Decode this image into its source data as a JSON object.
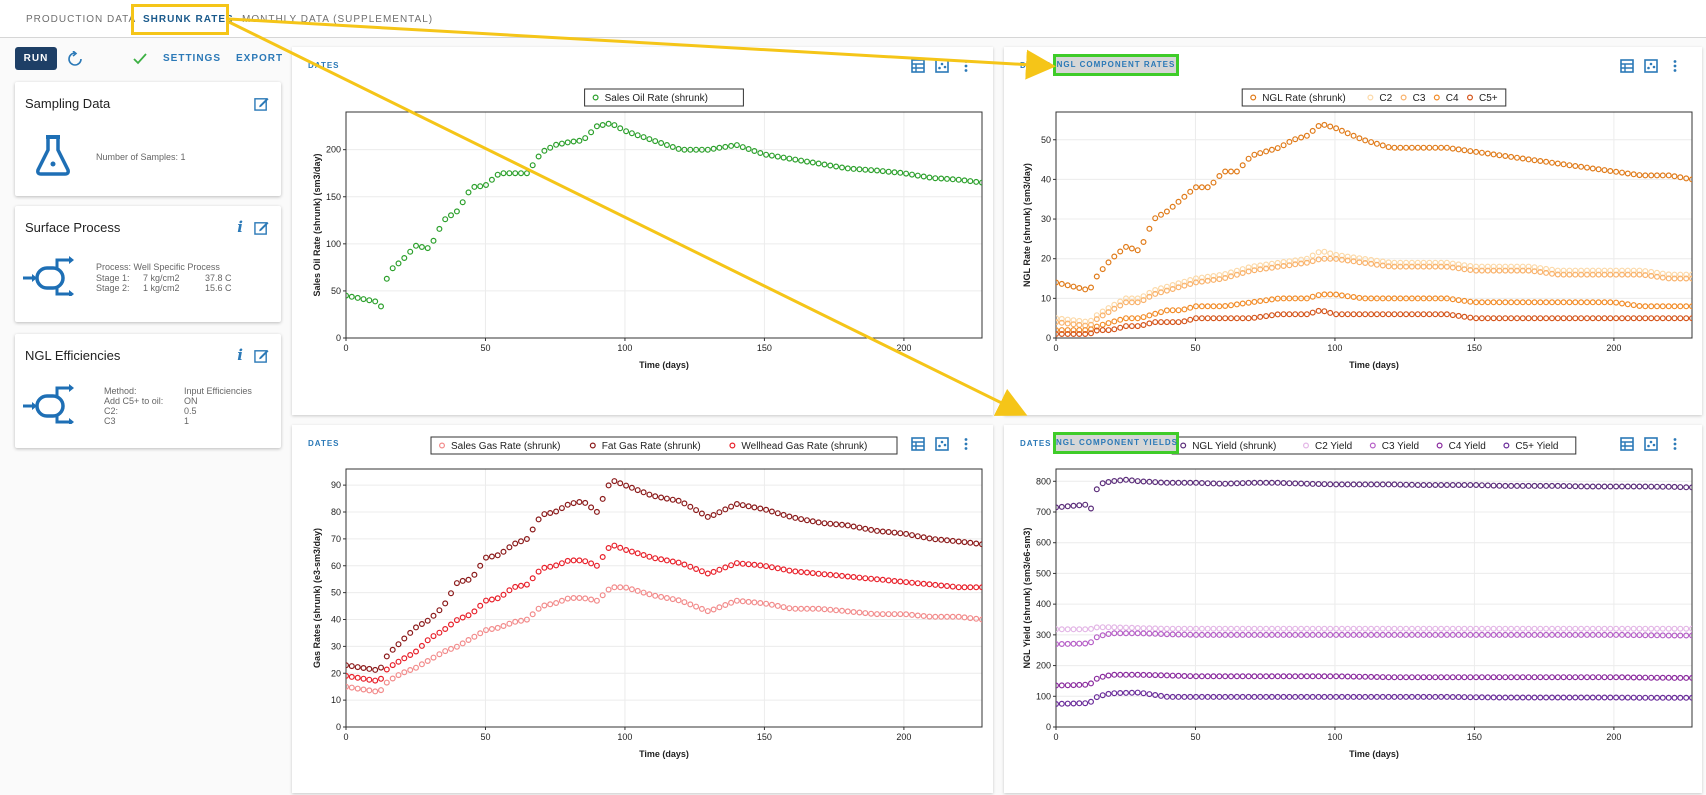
{
  "tabs": [
    "PRODUCTION DATA",
    "SHRUNK RATES",
    "MONTHLY DATA (SUPPLEMENTAL)"
  ],
  "toolbar": {
    "run": "RUN",
    "settings": "SETTINGS",
    "export": "EXPORT"
  },
  "cards": {
    "sampling": {
      "title": "Sampling Data",
      "samples": "Number of Samples: 1"
    },
    "surface": {
      "title": "Surface Process",
      "process": "Process: Well Specific Process",
      "stages": [
        {
          "name": "Stage 1:",
          "pressure": "7 kg/cm2",
          "temp": "37.8 C"
        },
        {
          "name": "Stage 2:",
          "pressure": "1 kg/cm2",
          "temp": "15.6 C"
        }
      ]
    },
    "ngl": {
      "title": "NGL Efficiencies",
      "rows": [
        {
          "k": "Method:",
          "v": "Input Efficiencies"
        },
        {
          "k": "Add C5+ to oil:",
          "v": "ON"
        },
        {
          "k": "C2:",
          "v": "0.5"
        },
        {
          "k": "C3",
          "v": "1"
        }
      ]
    }
  },
  "panels": {
    "p1": {
      "head": "DATES"
    },
    "p2": {
      "head": "DATES",
      "highlight": "NGL COMPONENT RATES"
    },
    "p3": {
      "head": "DATES"
    },
    "p4": {
      "head": "DATES",
      "highlight": "NGL COMPONENT YIELDS"
    }
  },
  "colors": {
    "accent": "#2b79b7",
    "run": "#1e3f66",
    "highlight_yellow": "#f5c518",
    "highlight_green": "#3fcc29"
  },
  "chart_data": [
    {
      "id": "oil",
      "type": "scatter",
      "xlabel": "Time (days)",
      "ylabel": "Sales Oil Rate (shrunk) (sm3/day)",
      "xlim": [
        0,
        228
      ],
      "ylim": [
        0,
        240
      ],
      "xticks": [
        0,
        50,
        100,
        150,
        200
      ],
      "yticks": [
        0,
        50,
        100,
        150,
        200
      ],
      "series": [
        {
          "name": "Sales Oil Rate (shrunk)",
          "color": "#2ca02c",
          "x": [
            0,
            12,
            13,
            15,
            20,
            25,
            30,
            35,
            40,
            45,
            50,
            55,
            60,
            65,
            70,
            75,
            80,
            85,
            90,
            95,
            100,
            110,
            120,
            130,
            140,
            150,
            160,
            170,
            180,
            190,
            200,
            210,
            220,
            228
          ],
          "y": [
            45,
            38,
            30,
            70,
            82,
            98,
            95,
            125,
            135,
            160,
            162,
            175,
            175,
            175,
            197,
            205,
            208,
            210,
            225,
            228,
            220,
            210,
            200,
            200,
            205,
            195,
            190,
            185,
            180,
            178,
            175,
            170,
            168,
            165
          ]
        }
      ]
    },
    {
      "id": "nglrate",
      "type": "scatter",
      "xlabel": "Time (days)",
      "ylabel": "NGL Rate (shrunk) (sm3/day)",
      "xlim": [
        0,
        228
      ],
      "ylim": [
        0,
        57
      ],
      "xticks": [
        0,
        50,
        100,
        150,
        200
      ],
      "yticks": [
        0,
        10,
        20,
        30,
        40,
        50
      ],
      "series": [
        {
          "name": "NGL Rate (shrunk)",
          "color": "#e07b1a",
          "x": [
            0,
            12,
            15,
            20,
            25,
            30,
            35,
            40,
            45,
            50,
            55,
            60,
            65,
            70,
            75,
            80,
            85,
            90,
            95,
            100,
            110,
            120,
            130,
            140,
            150,
            160,
            170,
            180,
            190,
            200,
            210,
            220,
            228
          ],
          "y": [
            14,
            12,
            16,
            20,
            23,
            22,
            30,
            32,
            35,
            38,
            38,
            42,
            42,
            46,
            47,
            48,
            50,
            51,
            54,
            53,
            50,
            48,
            48,
            48,
            47,
            46,
            45,
            44,
            43,
            42,
            41,
            41,
            40
          ]
        },
        {
          "name": "C2",
          "color": "#fcd9a8",
          "x": [
            0,
            12,
            15,
            20,
            25,
            30,
            35,
            40,
            45,
            50,
            60,
            70,
            80,
            90,
            95,
            100,
            110,
            120,
            130,
            140,
            150,
            160,
            170,
            180,
            190,
            200,
            210,
            220,
            228
          ],
          "y": [
            5,
            4,
            6,
            8,
            10,
            10,
            12,
            13,
            14,
            15,
            16,
            18,
            19,
            20,
            22,
            21,
            20,
            19,
            19,
            19,
            18,
            18,
            18,
            17,
            17,
            17,
            17,
            16,
            16
          ]
        },
        {
          "name": "C3",
          "color": "#f9b26b",
          "x": [
            0,
            12,
            15,
            20,
            25,
            30,
            35,
            40,
            45,
            50,
            60,
            70,
            80,
            90,
            95,
            100,
            110,
            120,
            130,
            140,
            150,
            160,
            170,
            180,
            190,
            200,
            210,
            220,
            228
          ],
          "y": [
            4,
            3,
            5,
            7,
            9,
            9,
            11,
            12,
            13,
            14,
            15,
            17,
            18,
            19,
            20,
            20,
            19,
            18,
            18,
            18,
            17,
            17,
            17,
            16,
            16,
            16,
            16,
            15,
            15
          ]
        },
        {
          "name": "C4",
          "color": "#f28c28",
          "x": [
            0,
            12,
            15,
            20,
            25,
            30,
            35,
            40,
            45,
            50,
            60,
            70,
            80,
            90,
            95,
            100,
            110,
            120,
            130,
            140,
            150,
            160,
            170,
            180,
            190,
            200,
            210,
            220,
            228
          ],
          "y": [
            2,
            2,
            3,
            4,
            5,
            5,
            6,
            7,
            7,
            8,
            8,
            9,
            10,
            10,
            11,
            11,
            10,
            10,
            10,
            10,
            9,
            9,
            9,
            9,
            9,
            9,
            8,
            8,
            8
          ]
        },
        {
          "name": "C5+",
          "color": "#d4541a",
          "x": [
            0,
            12,
            15,
            20,
            25,
            30,
            35,
            40,
            45,
            50,
            60,
            70,
            80,
            90,
            95,
            100,
            110,
            120,
            130,
            140,
            150,
            160,
            170,
            180,
            190,
            200,
            210,
            220,
            228
          ],
          "y": [
            1,
            1,
            2,
            2,
            3,
            3,
            4,
            4,
            4,
            5,
            5,
            5,
            6,
            6,
            7,
            6,
            6,
            6,
            6,
            6,
            5,
            5,
            5,
            5,
            5,
            5,
            5,
            5,
            5
          ]
        }
      ]
    },
    {
      "id": "gas",
      "type": "scatter",
      "xlabel": "Time (days)",
      "ylabel": "Gas Rates (shrunk) (e3-sm3/day)",
      "xlim": [
        0,
        228
      ],
      "ylim": [
        0,
        96
      ],
      "xticks": [
        0,
        50,
        100,
        150,
        200
      ],
      "yticks": [
        0,
        10,
        20,
        30,
        40,
        50,
        60,
        70,
        80,
        90
      ],
      "series": [
        {
          "name": "Sales Gas Rate (shrunk)",
          "color": "#f28b8b",
          "x": [
            0,
            12,
            15,
            20,
            25,
            30,
            35,
            40,
            45,
            50,
            55,
            60,
            65,
            70,
            75,
            80,
            85,
            90,
            95,
            100,
            110,
            120,
            130,
            140,
            150,
            160,
            170,
            180,
            190,
            200,
            210,
            220,
            228
          ],
          "y": [
            15,
            13,
            17,
            20,
            22,
            25,
            28,
            30,
            33,
            36,
            37,
            39,
            40,
            45,
            46,
            48,
            48,
            47,
            52,
            52,
            49,
            47,
            43,
            47,
            46,
            44,
            44,
            43,
            42,
            42,
            41,
            41,
            40
          ]
        },
        {
          "name": "Fat Gas Rate (shrunk)",
          "color": "#8b1a1a",
          "x": [
            0,
            12,
            15,
            20,
            25,
            30,
            35,
            40,
            45,
            50,
            55,
            60,
            65,
            70,
            75,
            80,
            85,
            90,
            95,
            100,
            110,
            120,
            130,
            140,
            150,
            160,
            170,
            180,
            190,
            200,
            210,
            220,
            228
          ],
          "y": [
            23,
            21,
            27,
            32,
            37,
            40,
            45,
            54,
            55,
            63,
            64,
            68,
            70,
            79,
            80,
            83,
            84,
            80,
            92,
            90,
            86,
            84,
            78,
            83,
            81,
            78,
            76,
            75,
            73,
            72,
            70,
            69,
            68
          ]
        },
        {
          "name": "Wellhead Gas Rate (shrunk)",
          "color": "#e8202a",
          "x": [
            0,
            12,
            15,
            20,
            25,
            30,
            35,
            40,
            45,
            50,
            55,
            60,
            65,
            70,
            75,
            80,
            85,
            90,
            95,
            100,
            110,
            120,
            130,
            140,
            150,
            160,
            170,
            180,
            190,
            200,
            210,
            220,
            228
          ],
          "y": [
            19,
            17,
            22,
            25,
            28,
            33,
            36,
            40,
            42,
            47,
            48,
            52,
            53,
            59,
            60,
            62,
            62,
            60,
            68,
            66,
            63,
            61,
            57,
            61,
            60,
            58,
            57,
            56,
            55,
            54,
            53,
            52,
            52
          ]
        }
      ]
    },
    {
      "id": "nglyield",
      "type": "scatter",
      "xlabel": "Time (days)",
      "ylabel": "NGL Yield (shrunk) (sm3/e6-sm3)",
      "xlim": [
        0,
        228
      ],
      "ylim": [
        0,
        840
      ],
      "xticks": [
        0,
        50,
        100,
        150,
        200
      ],
      "yticks": [
        0,
        100,
        200,
        300,
        400,
        500,
        600,
        700,
        800
      ],
      "series": [
        {
          "name": "NGL Yield (shrunk)",
          "color": "#5b2d7a",
          "x": [
            0,
            12,
            13,
            15,
            20,
            25,
            30,
            40,
            50,
            60,
            70,
            80,
            90,
            100,
            110,
            120,
            130,
            140,
            150,
            160,
            170,
            180,
            190,
            200,
            210,
            220,
            228
          ],
          "y": [
            715,
            725,
            700,
            790,
            800,
            805,
            800,
            795,
            795,
            792,
            795,
            795,
            792,
            790,
            790,
            790,
            788,
            788,
            788,
            785,
            785,
            785,
            783,
            783,
            783,
            782,
            780
          ]
        },
        {
          "name": "C2 Yield",
          "color": "#e3b6e6",
          "x": [
            0,
            12,
            15,
            20,
            30,
            40,
            50,
            60,
            80,
            100,
            120,
            140,
            160,
            180,
            200,
            220,
            228
          ],
          "y": [
            318,
            318,
            325,
            325,
            322,
            320,
            320,
            320,
            320,
            320,
            320,
            320,
            320,
            320,
            320,
            320,
            320
          ]
        },
        {
          "name": "C3 Yield",
          "color": "#b65fc7",
          "x": [
            0,
            12,
            15,
            20,
            30,
            40,
            50,
            60,
            80,
            100,
            120,
            140,
            160,
            180,
            200,
            220,
            228
          ],
          "y": [
            270,
            272,
            295,
            305,
            305,
            302,
            300,
            300,
            300,
            300,
            300,
            300,
            300,
            300,
            300,
            298,
            298
          ]
        },
        {
          "name": "C4 Yield",
          "color": "#8a2a9e",
          "x": [
            0,
            12,
            15,
            20,
            30,
            40,
            50,
            60,
            80,
            100,
            120,
            140,
            160,
            180,
            200,
            220,
            228
          ],
          "y": [
            135,
            138,
            160,
            170,
            170,
            168,
            165,
            165,
            165,
            165,
            162,
            162,
            162,
            162,
            162,
            160,
            160
          ]
        },
        {
          "name": "C5+ Yield",
          "color": "#6a2c9a",
          "x": [
            0,
            12,
            15,
            20,
            30,
            40,
            50,
            60,
            80,
            100,
            120,
            140,
            160,
            180,
            200,
            220,
            228
          ],
          "y": [
            75,
            78,
            100,
            110,
            112,
            98,
            98,
            98,
            98,
            98,
            98,
            98,
            96,
            96,
            96,
            95,
            95
          ]
        }
      ]
    }
  ]
}
